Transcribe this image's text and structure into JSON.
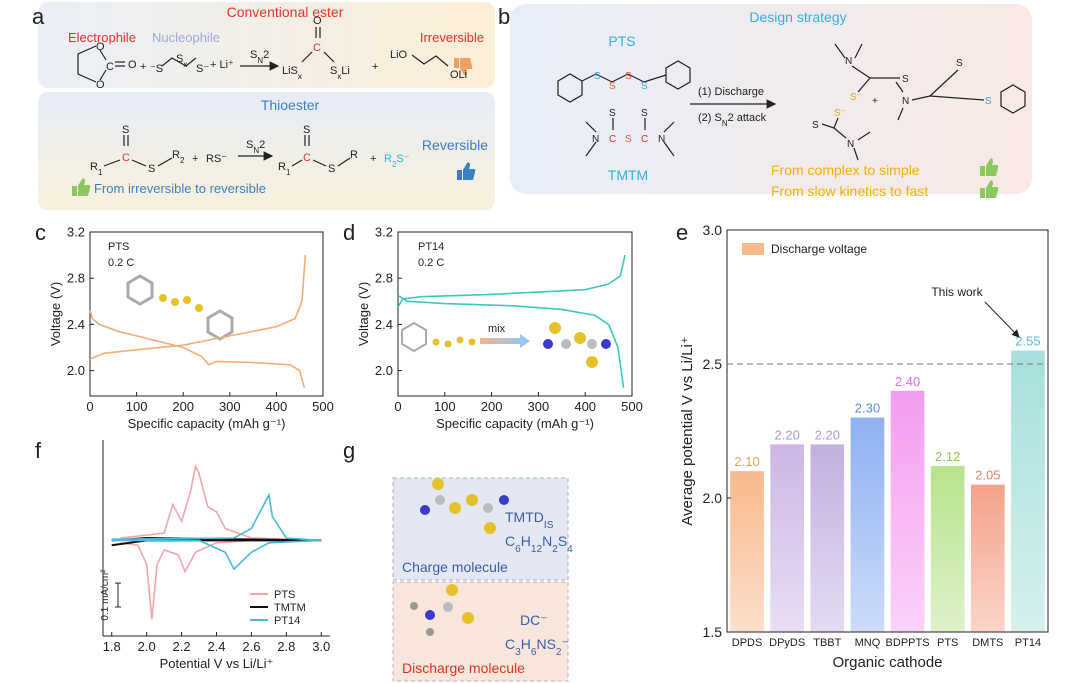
{
  "panel_labels": [
    "a",
    "b",
    "c",
    "d",
    "e",
    "f",
    "g"
  ],
  "panel_a": {
    "ester_title": "Conventional ester",
    "electrophile": "Electrophile",
    "nucleophile": "Nucleophile",
    "irreversible": "Irreversible",
    "ester_atoms": [
      "O",
      "O",
      "C",
      "O",
      "+",
      "⁻S",
      [
        "S",
        "x"
      ],
      "S⁻",
      "+ Li⁺",
      [
        "S",
        "N",
        "2"
      ],
      "O",
      "C",
      [
        "LiS",
        "x"
      ],
      [
        "S",
        "x",
        "Li"
      ],
      "+",
      "LiO",
      "OLi"
    ],
    "thioester_title": "Thioester",
    "reversible": "Reversible",
    "summary": "From irreversible to reversible",
    "thioester_atoms": [
      "S",
      "C",
      [
        "R",
        "1"
      ],
      "S",
      [
        "R",
        "2"
      ],
      "+",
      "RS⁻",
      [
        "S",
        "N",
        "2"
      ],
      "S",
      "C",
      [
        "R",
        "1"
      ],
      "S",
      "R",
      "+",
      [
        "R",
        "2",
        "S⁻"
      ]
    ]
  },
  "panel_b": {
    "title": "Design strategy",
    "pts": "PTS",
    "tmtm": "TMTM",
    "step1": "(1) Discharge",
    "step2": [
      "(2) S",
      "N",
      "2  attack"
    ],
    "point1": "From complex to simple",
    "point2": "From slow kinetics to fast",
    "atoms": [
      "S",
      "S",
      "S",
      "S",
      "S",
      "S",
      "N",
      "C",
      "S",
      "C",
      "N",
      "N",
      "S",
      "S⁻",
      "+",
      "S⁻",
      "S",
      "N",
      "S",
      "N",
      "S"
    ]
  },
  "chart_data": [
    {
      "type": "line",
      "annotations": [
        "PTS",
        "0.2 C"
      ],
      "xlabel": "Specific capacity (mAh g⁻¹)",
      "ylabel": "Voltage (V)",
      "frame": true,
      "xlim": [
        0,
        500
      ],
      "xticks": [
        0,
        100,
        200,
        300,
        400,
        500
      ],
      "ylim": [
        1.78,
        3.2
      ],
      "yticks": [
        {
          "value": 2.0,
          "label": "2.0"
        },
        {
          "value": 2.4,
          "label": "2.4"
        },
        {
          "value": 2.8,
          "label": "2.8"
        },
        {
          "value": 3.2,
          "label": "3.2"
        }
      ],
      "series": [
        {
          "color": "#f0ae78",
          "x": [
            0,
            5,
            20,
            60,
            100,
            150,
            200,
            240,
            255,
            270,
            350,
            430,
            450,
            460
          ],
          "values": [
            2.52,
            2.45,
            2.4,
            2.34,
            2.3,
            2.25,
            2.2,
            2.12,
            2.05,
            2.08,
            2.07,
            2.05,
            2.0,
            1.85
          ]
        },
        {
          "color": "#f0ae78",
          "x": [
            0,
            30,
            100,
            200,
            300,
            400,
            440,
            455,
            462
          ],
          "values": [
            2.1,
            2.15,
            2.18,
            2.22,
            2.3,
            2.38,
            2.45,
            2.6,
            3.0
          ]
        }
      ]
    },
    {
      "type": "line",
      "annotations": [
        "PT14",
        "0.2 C",
        "mix"
      ],
      "xlabel": "Specific capacity (mAh g⁻¹)",
      "ylabel": "Voltage (V)",
      "frame": true,
      "xlim": [
        0,
        500
      ],
      "xticks": [
        0,
        100,
        200,
        300,
        400,
        500
      ],
      "ylim": [
        1.78,
        3.2
      ],
      "yticks": [
        {
          "value": 2.0,
          "label": "2.0"
        },
        {
          "value": 2.4,
          "label": "2.4"
        },
        {
          "value": 2.8,
          "label": "2.8"
        },
        {
          "value": 3.2,
          "label": "3.2"
        }
      ],
      "series": [
        {
          "color": "#3cc8c0",
          "x": [
            0,
            10,
            50,
            200,
            300,
            400,
            450,
            475,
            485
          ],
          "values": [
            2.55,
            2.62,
            2.64,
            2.66,
            2.68,
            2.7,
            2.75,
            2.82,
            3.0
          ]
        },
        {
          "color": "#3cc8c0",
          "x": [
            0,
            20,
            100,
            250,
            350,
            420,
            450,
            470,
            482
          ],
          "values": [
            2.65,
            2.6,
            2.58,
            2.56,
            2.53,
            2.48,
            2.4,
            2.2,
            1.85
          ]
        }
      ]
    },
    {
      "type": "bar",
      "xlabel": "Organic cathode",
      "ylabel": "Average potential V vs Li/Li⁺",
      "frame": true,
      "categories": [
        "DPDS",
        "DPyDS",
        "TBBT",
        "MNQ",
        "BDPPTS",
        "PTS",
        "DMTS",
        "PT14"
      ],
      "values": [
        2.1,
        2.2,
        2.2,
        2.3,
        2.4,
        2.12,
        2.05,
        2.55
      ],
      "value_labels": [
        "2.10",
        "2.20",
        "2.20",
        "2.30",
        "2.40",
        "2.12",
        "2.05",
        "2.55"
      ],
      "colors": [
        "#f8b98c",
        "#cdb6e4",
        "#c2b0df",
        "#8fb0f2",
        "#f49cf0",
        "#b8e28c",
        "#f4a28a",
        "#a6dfdb"
      ],
      "label_colors": [
        "#e8a060",
        "#b394d8",
        "#b394d8",
        "#5a8ce8",
        "#e070e0",
        "#8cc850",
        "#e58060",
        "#58b8e0"
      ],
      "ylim": [
        1.5,
        3.0
      ],
      "yticks": [
        1.5,
        {
          "value": 2.0,
          "label": "2.0"
        },
        2.5,
        {
          "value": 3.0,
          "label": "3.0"
        }
      ],
      "legend": "Discharge voltage",
      "reference_line": 2.5,
      "annotation": "This work"
    },
    {
      "type": "line",
      "xlabel": "Potential V vs Li/Li⁺",
      "frame": false,
      "xlim": [
        1.75,
        3.05
      ],
      "xticks": [
        1.8,
        {
          "value": 2.0,
          "label": "2.0"
        },
        2.2,
        2.4,
        2.6,
        2.8,
        {
          "value": 3.0,
          "label": "3.0"
        }
      ],
      "ylim": [
        -0.4,
        0.42
      ],
      "scale_bar": {
        "value": 0.1,
        "label": "0.1 mA/cm²"
      },
      "legend_position": "lower right",
      "series": [
        {
          "name": "PTS",
          "color": "#f4a6a6",
          "x": [
            1.85,
            1.95,
            2.0,
            2.03,
            2.06,
            2.1,
            2.18,
            2.22,
            2.28,
            2.4,
            2.6,
            3.0,
            2.6,
            2.45,
            2.4,
            2.35,
            2.3,
            2.28,
            2.25,
            2.2,
            2.15,
            2.1,
            1.85
          ],
          "values": [
            -0.01,
            -0.02,
            -0.1,
            -0.33,
            -0.1,
            -0.04,
            -0.06,
            -0.13,
            -0.05,
            -0.01,
            0,
            0,
            0.01,
            0.05,
            0.12,
            0.14,
            0.28,
            0.31,
            0.2,
            0.08,
            0.15,
            0.03,
            0.01
          ]
        },
        {
          "name": "TMTM",
          "color": "#111111",
          "x": [
            1.8,
            2.0,
            3.0,
            2.0,
            1.8
          ],
          "values": [
            -0.02,
            0.0,
            0.0,
            0.01,
            0.0
          ]
        },
        {
          "name": "PT14",
          "color": "#4cb8e0",
          "x": [
            1.8,
            2.3,
            2.45,
            2.5,
            2.6,
            2.7,
            3.0,
            2.8,
            2.72,
            2.7,
            2.6,
            2.5,
            1.8
          ],
          "values": [
            0,
            0,
            -0.05,
            -0.12,
            -0.05,
            -0.01,
            0,
            0.01,
            0.1,
            0.19,
            0.05,
            0.01,
            0.005
          ]
        }
      ]
    }
  ],
  "panel_g": {
    "charge_name": [
      "TMTD",
      "IS"
    ],
    "charge_formula": [
      "C",
      "6",
      "H",
      "12",
      "N",
      "2",
      "S",
      "4"
    ],
    "charge_label": "Charge molecule",
    "discharge_name": "DC⁻",
    "discharge_formula": [
      "C",
      "3",
      "H",
      "6",
      "NS",
      "2",
      "⁻"
    ],
    "discharge_label": "Discharge molecule"
  }
}
